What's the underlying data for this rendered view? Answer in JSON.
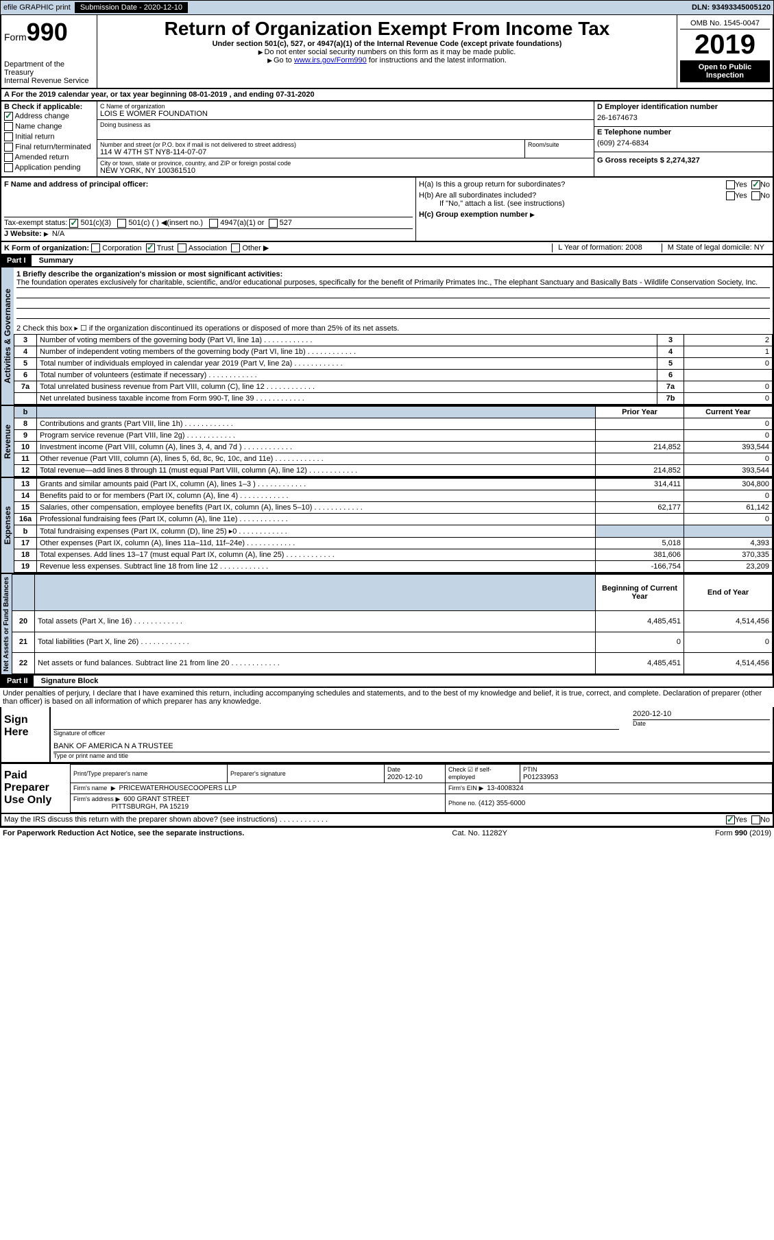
{
  "header_bar": {
    "efile": "efile GRAPHIC print",
    "sub_label": "Submission Date - 2020-12-10",
    "dln": "DLN: 93493345005120"
  },
  "form_header": {
    "form_word": "Form",
    "form_num": "990",
    "title": "Return of Organization Exempt From Income Tax",
    "subtitle": "Under section 501(c), 527, or 4947(a)(1) of the Internal Revenue Code (except private foundations)",
    "note1": "Do not enter social security numbers on this form as it may be made public.",
    "note2_pre": "Go to ",
    "note2_link": "www.irs.gov/Form990",
    "note2_post": " for instructions and the latest information.",
    "dept": "Department of the Treasury",
    "irs": "Internal Revenue Service",
    "omb": "OMB No. 1545-0047",
    "year": "2019",
    "open": "Open to Public Inspection"
  },
  "period": {
    "text": "A For the 2019 calendar year, or tax year beginning 08-01-2019   , and ending 07-31-2020"
  },
  "box_b": {
    "label": "B Check if applicable:",
    "items": [
      "Address change",
      "Name change",
      "Initial return",
      "Final return/terminated",
      "Amended return",
      "Application pending"
    ],
    "checked_idx": 0
  },
  "box_c": {
    "name_label": "C Name of organization",
    "name": "LOIS E WOMER FOUNDATION",
    "dba_label": "Doing business as",
    "addr_label": "Number and street (or P.O. box if mail is not delivered to street address)",
    "room_label": "Room/suite",
    "addr": "114 W 47TH ST NY8-114-07-07",
    "city_label": "City or town, state or province, country, and ZIP or foreign postal code",
    "city": "NEW YORK, NY  100361510"
  },
  "box_d": {
    "label": "D Employer identification number",
    "value": "26-1674673"
  },
  "box_e": {
    "label": "E Telephone number",
    "value": "(609) 274-6834"
  },
  "box_g": {
    "label": "G Gross receipts $ 2,274,327"
  },
  "box_f": {
    "label": "F  Name and address of principal officer:"
  },
  "box_h": {
    "a_label": "H(a)  Is this a group return for subordinates?",
    "b_label": "H(b)  Are all subordinates included?",
    "b_note": "If \"No,\" attach a list. (see instructions)",
    "c_label": "H(c)  Group exemption number",
    "yes": "Yes",
    "no": "No"
  },
  "tax_status": {
    "label": "Tax-exempt status:",
    "opts": [
      "501(c)(3)",
      "501(c) (  )",
      "(insert no.)",
      "4947(a)(1) or",
      "527"
    ]
  },
  "website": {
    "label": "J Website:",
    "value": "N/A"
  },
  "box_k": {
    "label": "K Form of organization:",
    "opts": [
      "Corporation",
      "Trust",
      "Association",
      "Other"
    ]
  },
  "box_l": {
    "label": "L Year of formation: 2008"
  },
  "box_m": {
    "label": "M State of legal domicile: NY"
  },
  "part1": {
    "header": "Part I",
    "title": "Summary",
    "line1_label": "1  Briefly describe the organization's mission or most significant activities:",
    "line1_text": "The foundation operates exclusively for charitable, scientific, and/or educational purposes, specifically for the benefit of Primarily Primates Inc., The elephant Sanctuary and Basically Bats - Wildlife Conservation Society, Inc.",
    "line2_label": "2  Check this box ▸ ☐  if the organization discontinued its operations or disposed of more than 25% of its net assets.",
    "sections": {
      "governance": "Activities & Governance",
      "revenue": "Revenue",
      "expenses": "Expenses",
      "netassets": "Net Assets or Fund Balances"
    },
    "col_headers": {
      "prior": "Prior Year",
      "current": "Current Year",
      "begin": "Beginning of Current Year",
      "end": "End of Year"
    },
    "lines_gov": [
      {
        "n": "3",
        "t": "Number of voting members of the governing body (Part VI, line 1a)",
        "box": "3",
        "v": "2"
      },
      {
        "n": "4",
        "t": "Number of independent voting members of the governing body (Part VI, line 1b)",
        "box": "4",
        "v": "1"
      },
      {
        "n": "5",
        "t": "Total number of individuals employed in calendar year 2019 (Part V, line 2a)",
        "box": "5",
        "v": "0"
      },
      {
        "n": "6",
        "t": "Total number of volunteers (estimate if necessary)",
        "box": "6",
        "v": ""
      },
      {
        "n": "7a",
        "t": "Total unrelated business revenue from Part VIII, column (C), line 12",
        "box": "7a",
        "v": "0"
      },
      {
        "n": "",
        "t": "Net unrelated business taxable income from Form 990-T, line 39",
        "box": "7b",
        "v": "0"
      }
    ],
    "lines_rev": [
      {
        "n": "8",
        "t": "Contributions and grants (Part VIII, line 1h)",
        "p": "",
        "c": "0"
      },
      {
        "n": "9",
        "t": "Program service revenue (Part VIII, line 2g)",
        "p": "",
        "c": "0"
      },
      {
        "n": "10",
        "t": "Investment income (Part VIII, column (A), lines 3, 4, and 7d )",
        "p": "214,852",
        "c": "393,544"
      },
      {
        "n": "11",
        "t": "Other revenue (Part VIII, column (A), lines 5, 6d, 8c, 9c, 10c, and 11e)",
        "p": "",
        "c": "0"
      },
      {
        "n": "12",
        "t": "Total revenue—add lines 8 through 11 (must equal Part VIII, column (A), line 12)",
        "p": "214,852",
        "c": "393,544"
      }
    ],
    "lines_exp": [
      {
        "n": "13",
        "t": "Grants and similar amounts paid (Part IX, column (A), lines 1–3 )",
        "p": "314,411",
        "c": "304,800"
      },
      {
        "n": "14",
        "t": "Benefits paid to or for members (Part IX, column (A), line 4)",
        "p": "",
        "c": "0"
      },
      {
        "n": "15",
        "t": "Salaries, other compensation, employee benefits (Part IX, column (A), lines 5–10)",
        "p": "62,177",
        "c": "61,142"
      },
      {
        "n": "16a",
        "t": "Professional fundraising fees (Part IX, column (A), line 11e)",
        "p": "",
        "c": "0"
      },
      {
        "n": "b",
        "t": "Total fundraising expenses (Part IX, column (D), line 25) ▸0",
        "p": "SHADE",
        "c": "SHADE"
      },
      {
        "n": "17",
        "t": "Other expenses (Part IX, column (A), lines 11a–11d, 11f–24e)",
        "p": "5,018",
        "c": "4,393"
      },
      {
        "n": "18",
        "t": "Total expenses. Add lines 13–17 (must equal Part IX, column (A), line 25)",
        "p": "381,606",
        "c": "370,335"
      },
      {
        "n": "19",
        "t": "Revenue less expenses. Subtract line 18 from line 12",
        "p": "-166,754",
        "c": "23,209"
      }
    ],
    "lines_net": [
      {
        "n": "20",
        "t": "Total assets (Part X, line 16)",
        "p": "4,485,451",
        "c": "4,514,456"
      },
      {
        "n": "21",
        "t": "Total liabilities (Part X, line 26)",
        "p": "0",
        "c": "0"
      },
      {
        "n": "22",
        "t": "Net assets or fund balances. Subtract line 21 from line 20",
        "p": "4,485,451",
        "c": "4,514,456"
      }
    ]
  },
  "part2": {
    "header": "Part II",
    "title": "Signature Block",
    "decl": "Under penalties of perjury, I declare that I have examined this return, including accompanying schedules and statements, and to the best of my knowledge and belief, it is true, correct, and complete. Declaration of preparer (other than officer) is based on all information of which preparer has any knowledge.",
    "sign_here": "Sign Here",
    "sig_officer": "Signature of officer",
    "date": "Date",
    "date_val": "2020-12-10",
    "name_title": "BANK OF AMERICA N A  TRUSTEE",
    "type_name": "Type or print name and title"
  },
  "prep": {
    "label": "Paid Preparer Use Only",
    "h1": "Print/Type preparer's name",
    "h2": "Preparer's signature",
    "h3": "Date",
    "h3v": "2020-12-10",
    "h4": "Check ☑ if self-employed",
    "h5": "PTIN",
    "h5v": "P01233953",
    "firm_name_l": "Firm's name",
    "firm_name": "PRICEWATERHOUSECOOPERS LLP",
    "ein_l": "Firm's EIN",
    "ein": "13-4008324",
    "addr_l": "Firm's address",
    "addr1": "600 GRANT STREET",
    "addr2": "PITTSBURGH, PA  15219",
    "phone_l": "Phone no.",
    "phone": "(412) 355-6000"
  },
  "discuss": {
    "text": "May the IRS discuss this return with the preparer shown above? (see instructions)",
    "yes": "Yes",
    "no": "No"
  },
  "footer": {
    "left": "For Paperwork Reduction Act Notice, see the separate instructions.",
    "mid": "Cat. No. 11282Y",
    "right": "Form 990 (2019)"
  }
}
